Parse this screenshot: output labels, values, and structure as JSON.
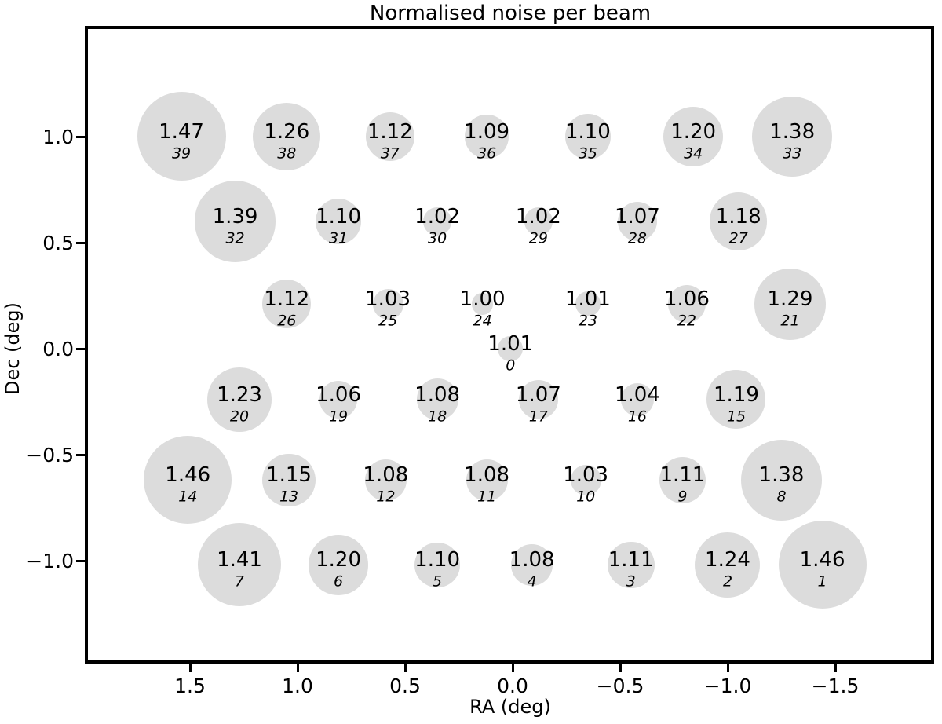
{
  "title": "Normalised noise per beam",
  "chart_data": {
    "type": "scatter",
    "title": "Normalised noise per beam",
    "xlabel": "RA (deg)",
    "ylabel": "Dec (deg)",
    "x_axis_reversed": true,
    "xlim": [
      1.98,
      -1.96
    ],
    "ylim": [
      -1.49,
      1.52
    ],
    "grid": false,
    "legend": null,
    "marker_color": "#dcdcdc",
    "text_color": "#000000",
    "size_rule": "radius_px = 80 * sqrt(value - 0.97)",
    "x_ticks": [
      {
        "value": 1.5,
        "label": "1.5"
      },
      {
        "value": 1.0,
        "label": "1.0"
      },
      {
        "value": 0.5,
        "label": "0.5"
      },
      {
        "value": 0.0,
        "label": "0.0"
      },
      {
        "value": -0.5,
        "label": "−0.5"
      },
      {
        "value": -1.0,
        "label": "−1.0"
      },
      {
        "value": -1.5,
        "label": "−1.5"
      }
    ],
    "y_ticks": [
      {
        "value": 1.0,
        "label": "1.0"
      },
      {
        "value": 0.5,
        "label": "0.5"
      },
      {
        "value": 0.0,
        "label": "0.0"
      },
      {
        "value": -0.5,
        "label": "−0.5"
      },
      {
        "value": -1.0,
        "label": "−1.0"
      }
    ],
    "points": [
      {
        "beam": 0,
        "value": "1.01",
        "ra": 0.01,
        "dec": 0.0
      },
      {
        "beam": 1,
        "value": "1.46",
        "ra": -1.44,
        "dec": -1.02
      },
      {
        "beam": 2,
        "value": "1.24",
        "ra": -1.0,
        "dec": -1.02
      },
      {
        "beam": 3,
        "value": "1.11",
        "ra": -0.55,
        "dec": -1.02
      },
      {
        "beam": 4,
        "value": "1.08",
        "ra": -0.09,
        "dec": -1.02
      },
      {
        "beam": 5,
        "value": "1.10",
        "ra": 0.35,
        "dec": -1.02
      },
      {
        "beam": 6,
        "value": "1.20",
        "ra": 0.81,
        "dec": -1.02
      },
      {
        "beam": 7,
        "value": "1.41",
        "ra": 1.27,
        "dec": -1.02
      },
      {
        "beam": 8,
        "value": "1.38",
        "ra": -1.25,
        "dec": -0.62
      },
      {
        "beam": 9,
        "value": "1.11",
        "ra": -0.79,
        "dec": -0.62
      },
      {
        "beam": 10,
        "value": "1.03",
        "ra": -0.34,
        "dec": -0.62
      },
      {
        "beam": 11,
        "value": "1.08",
        "ra": 0.12,
        "dec": -0.62
      },
      {
        "beam": 12,
        "value": "1.08",
        "ra": 0.59,
        "dec": -0.62
      },
      {
        "beam": 13,
        "value": "1.15",
        "ra": 1.04,
        "dec": -0.62
      },
      {
        "beam": 14,
        "value": "1.46",
        "ra": 1.51,
        "dec": -0.62
      },
      {
        "beam": 15,
        "value": "1.19",
        "ra": -1.04,
        "dec": -0.24
      },
      {
        "beam": 16,
        "value": "1.04",
        "ra": -0.58,
        "dec": -0.24
      },
      {
        "beam": 17,
        "value": "1.07",
        "ra": -0.12,
        "dec": -0.24
      },
      {
        "beam": 18,
        "value": "1.08",
        "ra": 0.35,
        "dec": -0.24
      },
      {
        "beam": 19,
        "value": "1.06",
        "ra": 0.81,
        "dec": -0.24
      },
      {
        "beam": 20,
        "value": "1.23",
        "ra": 1.27,
        "dec": -0.24
      },
      {
        "beam": 21,
        "value": "1.29",
        "ra": -1.29,
        "dec": 0.21
      },
      {
        "beam": 22,
        "value": "1.06",
        "ra": -0.81,
        "dec": 0.21
      },
      {
        "beam": 23,
        "value": "1.01",
        "ra": -0.35,
        "dec": 0.21
      },
      {
        "beam": 24,
        "value": "1.00",
        "ra": 0.14,
        "dec": 0.21
      },
      {
        "beam": 25,
        "value": "1.03",
        "ra": 0.58,
        "dec": 0.21
      },
      {
        "beam": 26,
        "value": "1.12",
        "ra": 1.05,
        "dec": 0.21
      },
      {
        "beam": 27,
        "value": "1.18",
        "ra": -1.05,
        "dec": 0.6
      },
      {
        "beam": 28,
        "value": "1.07",
        "ra": -0.58,
        "dec": 0.6
      },
      {
        "beam": 29,
        "value": "1.02",
        "ra": -0.12,
        "dec": 0.6
      },
      {
        "beam": 30,
        "value": "1.02",
        "ra": 0.35,
        "dec": 0.6
      },
      {
        "beam": 31,
        "value": "1.10",
        "ra": 0.81,
        "dec": 0.6
      },
      {
        "beam": 32,
        "value": "1.39",
        "ra": 1.29,
        "dec": 0.6
      },
      {
        "beam": 33,
        "value": "1.38",
        "ra": -1.3,
        "dec": 1.0
      },
      {
        "beam": 34,
        "value": "1.20",
        "ra": -0.84,
        "dec": 1.0
      },
      {
        "beam": 35,
        "value": "1.10",
        "ra": -0.35,
        "dec": 1.0
      },
      {
        "beam": 36,
        "value": "1.09",
        "ra": 0.12,
        "dec": 1.0
      },
      {
        "beam": 37,
        "value": "1.12",
        "ra": 0.57,
        "dec": 1.0
      },
      {
        "beam": 38,
        "value": "1.26",
        "ra": 1.05,
        "dec": 1.0
      },
      {
        "beam": 39,
        "value": "1.47",
        "ra": 1.54,
        "dec": 1.0
      }
    ]
  }
}
